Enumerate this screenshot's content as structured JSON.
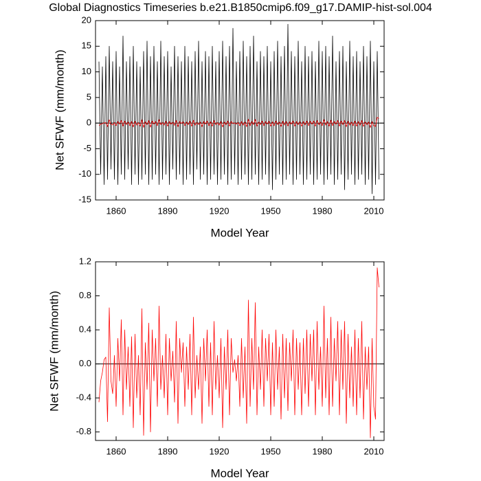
{
  "chart_data": [
    {
      "type": "line",
      "title": "Global Diagnostics Timeseries b.e21.B1850cmip6.f09_g17.DAMIP-hist-sol.004",
      "x_label": "Model Year",
      "y_label": "Net SFWF (mm/month)",
      "xlim": [
        1848,
        2016
      ],
      "xticks": [
        1860,
        1890,
        1920,
        1950,
        1980,
        2010
      ],
      "ylim": [
        -15,
        20
      ],
      "yticks": [
        -15,
        -10,
        -5,
        0,
        5,
        10,
        15,
        20
      ],
      "hline": 0,
      "x": [
        1850,
        1851,
        1852,
        1853,
        1854,
        1855,
        1856,
        1857,
        1858,
        1859,
        1860,
        1861,
        1862,
        1863,
        1864,
        1865,
        1866,
        1867,
        1868,
        1869,
        1870,
        1871,
        1872,
        1873,
        1874,
        1875,
        1876,
        1877,
        1878,
        1879,
        1880,
        1881,
        1882,
        1883,
        1884,
        1885,
        1886,
        1887,
        1888,
        1889,
        1890,
        1891,
        1892,
        1893,
        1894,
        1895,
        1896,
        1897,
        1898,
        1899,
        1900,
        1901,
        1902,
        1903,
        1904,
        1905,
        1906,
        1907,
        1908,
        1909,
        1910,
        1911,
        1912,
        1913,
        1914,
        1915,
        1916,
        1917,
        1918,
        1919,
        1920,
        1921,
        1922,
        1923,
        1924,
        1925,
        1926,
        1927,
        1928,
        1929,
        1930,
        1931,
        1932,
        1933,
        1934,
        1935,
        1936,
        1937,
        1938,
        1939,
        1940,
        1941,
        1942,
        1943,
        1944,
        1945,
        1946,
        1947,
        1948,
        1949,
        1950,
        1951,
        1952,
        1953,
        1954,
        1955,
        1956,
        1957,
        1958,
        1959,
        1960,
        1961,
        1962,
        1963,
        1964,
        1965,
        1966,
        1967,
        1968,
        1969,
        1970,
        1971,
        1972,
        1973,
        1974,
        1975,
        1976,
        1977,
        1978,
        1979,
        1980,
        1981,
        1982,
        1983,
        1984,
        1985,
        1986,
        1987,
        1988,
        1989,
        1990,
        1991,
        1992,
        1993,
        1994,
        1995,
        1996,
        1997,
        1998,
        1999,
        2000,
        2001,
        2002,
        2003,
        2004,
        2005,
        2006,
        2007,
        2008,
        2009,
        2010,
        2011,
        2012,
        2013
      ],
      "series": [
        {
          "color": "#000000",
          "values": [
            12,
            -10,
            11,
            -12,
            13,
            -11,
            15,
            -9,
            12,
            -11,
            14,
            -12,
            11,
            -10,
            17,
            -11,
            12,
            -9,
            13,
            -12,
            15,
            -10,
            12,
            -12,
            11,
            -11,
            14,
            -10,
            16,
            -12,
            13,
            -11,
            15,
            -10,
            12,
            -12,
            16,
            -11,
            13,
            -10,
            14,
            -12,
            11,
            -9,
            15,
            -11,
            13,
            -10,
            12,
            -12,
            15,
            -11,
            13,
            -10,
            12,
            -12,
            14,
            -9,
            16,
            -11,
            12,
            -10,
            14,
            -12,
            13,
            -11,
            15,
            -10,
            12,
            -12,
            14,
            -11,
            16,
            -10,
            13,
            -12,
            15,
            -11,
            18.5,
            -10,
            12,
            -12,
            14,
            -11,
            16,
            -10,
            13,
            -12,
            15,
            -11,
            17,
            -10,
            12,
            -12,
            14,
            -11,
            13,
            -10,
            15,
            -12,
            12,
            -13,
            14,
            -11,
            16,
            -10,
            13,
            -12,
            15,
            -11,
            19.3,
            -10,
            14,
            -12,
            13,
            -11,
            16,
            -10,
            12,
            -12,
            15,
            -11,
            13,
            -10,
            14,
            -12,
            12,
            -11,
            16,
            -10,
            14,
            -12,
            15,
            -11,
            13,
            -10,
            17,
            -12,
            12,
            -11,
            14,
            -10,
            15,
            -13,
            12,
            -11,
            16,
            -10,
            13,
            -12,
            14,
            -11,
            12,
            -10,
            15,
            -12,
            13,
            -11,
            16,
            -13.8,
            12,
            -12,
            14,
            -11
          ]
        },
        {
          "color": "#ff0000",
          "values": [
            -0.45,
            -0.2,
            -0.1,
            0.05,
            0.08,
            -0.68,
            0.66,
            -0.2,
            -0.35,
            0.1,
            -0.5,
            0.3,
            -0.2,
            0.52,
            -0.6,
            0.4,
            -0.3,
            0.2,
            -0.5,
            0.32,
            -0.75,
            0.35,
            -0.4,
            0.1,
            -0.6,
            0.65,
            -0.84,
            0.25,
            -0.3,
            0.48,
            -0.8,
            0.4,
            -0.2,
            0.3,
            -0.5,
            0.68,
            -0.3,
            0.1,
            -0.4,
            0.35,
            -0.6,
            0.3,
            -0.2,
            0.15,
            -0.45,
            0.5,
            -0.7,
            0.3,
            -0.1,
            0.25,
            -0.5,
            0.2,
            -0.3,
            0.35,
            -0.6,
            0.55,
            -0.4,
            0.1,
            -0.3,
            0.2,
            -0.7,
            0.3,
            -0.2,
            0.4,
            -0.5,
            0.25,
            -0.6,
            0.5,
            -0.3,
            0.1,
            -0.4,
            0.3,
            -0.75,
            0.2,
            -0.3,
            0.4,
            -0.6,
            0.3,
            -0.1,
            0.05,
            -0.2,
            0.1,
            -0.5,
            0.3,
            -0.4,
            0.2,
            -0.7,
            0.75,
            -0.5,
            0.3,
            -0.3,
            0.72,
            -0.6,
            0.2,
            -0.3,
            0.4,
            -0.5,
            0.3,
            -0.2,
            0.35,
            -0.6,
            0.25,
            -0.5,
            0.4,
            -0.3,
            0.2,
            -0.65,
            0.35,
            -0.4,
            0.3,
            -0.55,
            0.25,
            -0.2,
            0.4,
            -0.6,
            0.3,
            -0.3,
            0.25,
            -0.6,
            0.3,
            -0.35,
            0.4,
            -0.5,
            0.35,
            -0.2,
            0.4,
            -0.6,
            0.5,
            -0.3,
            0.2,
            -0.5,
            0.68,
            -0.4,
            0.3,
            -0.6,
            0.55,
            -0.5,
            0.3,
            -0.2,
            0.5,
            -0.6,
            0.4,
            -0.3,
            0.5,
            -0.7,
            0.35,
            -0.4,
            0.2,
            -0.5,
            0.4,
            -0.6,
            0.3,
            -0.4,
            0.5,
            -0.65,
            0.2,
            -0.3,
            0.2,
            -0.87,
            0.3,
            -0.5,
            -0.65,
            1.13,
            0.9
          ]
        }
      ]
    },
    {
      "type": "line",
      "x_label": "Model Year",
      "y_label": "Net SFWF (mm/month)",
      "xlim": [
        1848,
        2016
      ],
      "xticks": [
        1860,
        1890,
        1920,
        1950,
        1980,
        2010
      ],
      "ylim": [
        -0.9,
        1.2
      ],
      "yticks": [
        -0.8,
        -0.4,
        {
          "value": 0,
          "label": "0.0"
        },
        0.4,
        0.8,
        1.2
      ],
      "hline": 0,
      "x": [
        1850,
        1851,
        1852,
        1853,
        1854,
        1855,
        1856,
        1857,
        1858,
        1859,
        1860,
        1861,
        1862,
        1863,
        1864,
        1865,
        1866,
        1867,
        1868,
        1869,
        1870,
        1871,
        1872,
        1873,
        1874,
        1875,
        1876,
        1877,
        1878,
        1879,
        1880,
        1881,
        1882,
        1883,
        1884,
        1885,
        1886,
        1887,
        1888,
        1889,
        1890,
        1891,
        1892,
        1893,
        1894,
        1895,
        1896,
        1897,
        1898,
        1899,
        1900,
        1901,
        1902,
        1903,
        1904,
        1905,
        1906,
        1907,
        1908,
        1909,
        1910,
        1911,
        1912,
        1913,
        1914,
        1915,
        1916,
        1917,
        1918,
        1919,
        1920,
        1921,
        1922,
        1923,
        1924,
        1925,
        1926,
        1927,
        1928,
        1929,
        1930,
        1931,
        1932,
        1933,
        1934,
        1935,
        1936,
        1937,
        1938,
        1939,
        1940,
        1941,
        1942,
        1943,
        1944,
        1945,
        1946,
        1947,
        1948,
        1949,
        1950,
        1951,
        1952,
        1953,
        1954,
        1955,
        1956,
        1957,
        1958,
        1959,
        1960,
        1961,
        1962,
        1963,
        1964,
        1965,
        1966,
        1967,
        1968,
        1969,
        1970,
        1971,
        1972,
        1973,
        1974,
        1975,
        1976,
        1977,
        1978,
        1979,
        1980,
        1981,
        1982,
        1983,
        1984,
        1985,
        1986,
        1987,
        1988,
        1989,
        1990,
        1991,
        1992,
        1993,
        1994,
        1995,
        1996,
        1997,
        1998,
        1999,
        2000,
        2001,
        2002,
        2003,
        2004,
        2005,
        2006,
        2007,
        2008,
        2009,
        2010,
        2011,
        2012,
        2013
      ],
      "series": [
        {
          "color": "#ff0000",
          "values": [
            -0.45,
            -0.2,
            -0.1,
            0.05,
            0.08,
            -0.68,
            0.66,
            -0.2,
            -0.35,
            0.1,
            -0.5,
            0.3,
            -0.2,
            0.52,
            -0.6,
            0.4,
            -0.3,
            0.2,
            -0.5,
            0.32,
            -0.75,
            0.35,
            -0.4,
            0.1,
            -0.6,
            0.65,
            -0.84,
            0.25,
            -0.3,
            0.48,
            -0.8,
            0.4,
            -0.2,
            0.3,
            -0.5,
            0.68,
            -0.3,
            0.1,
            -0.4,
            0.35,
            -0.6,
            0.3,
            -0.2,
            0.15,
            -0.45,
            0.5,
            -0.7,
            0.3,
            -0.1,
            0.25,
            -0.5,
            0.2,
            -0.3,
            0.35,
            -0.6,
            0.55,
            -0.4,
            0.1,
            -0.3,
            0.2,
            -0.7,
            0.3,
            -0.2,
            0.4,
            -0.5,
            0.25,
            -0.6,
            0.5,
            -0.3,
            0.1,
            -0.4,
            0.3,
            -0.75,
            0.2,
            -0.3,
            0.4,
            -0.6,
            0.3,
            -0.1,
            0.05,
            -0.2,
            0.1,
            -0.5,
            0.3,
            -0.4,
            0.2,
            -0.7,
            0.75,
            -0.5,
            0.3,
            -0.3,
            0.72,
            -0.6,
            0.2,
            -0.3,
            0.4,
            -0.5,
            0.3,
            -0.2,
            0.35,
            -0.6,
            0.25,
            -0.5,
            0.4,
            -0.3,
            0.2,
            -0.65,
            0.35,
            -0.4,
            0.3,
            -0.55,
            0.25,
            -0.2,
            0.4,
            -0.6,
            0.3,
            -0.3,
            0.25,
            -0.6,
            0.3,
            -0.35,
            0.4,
            -0.5,
            0.35,
            -0.2,
            0.4,
            -0.6,
            0.5,
            -0.3,
            0.2,
            -0.5,
            0.68,
            -0.4,
            0.3,
            -0.6,
            0.55,
            -0.5,
            0.3,
            -0.2,
            0.5,
            -0.6,
            0.4,
            -0.3,
            0.5,
            -0.7,
            0.35,
            -0.4,
            0.2,
            -0.5,
            0.4,
            -0.6,
            0.3,
            -0.4,
            0.5,
            -0.65,
            0.2,
            -0.3,
            0.2,
            -0.87,
            0.3,
            -0.5,
            -0.65,
            1.13,
            0.9
          ]
        }
      ]
    }
  ]
}
